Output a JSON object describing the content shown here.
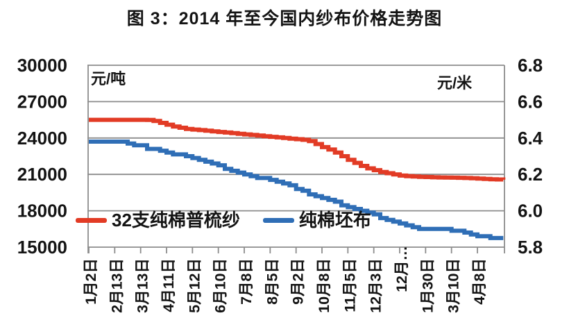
{
  "title": "图 3：2014 年至今国内纱布价格走势图",
  "chart_data": {
    "type": "line",
    "title": "图 3：2014 年至今国内纱布价格走势图",
    "grid": "horizontal",
    "legend_position": "inside-bottom-left",
    "left_axis": {
      "unit_label": "元/吨",
      "tick_labels": [
        "30000",
        "27000",
        "24000",
        "21000",
        "18000",
        "15000"
      ],
      "range": [
        15000,
        30000
      ]
    },
    "right_axis": {
      "unit_label": "元/米",
      "tick_labels": [
        "6.8",
        "6.6",
        "6.4",
        "6.2",
        "6.0",
        "5.8"
      ],
      "range": [
        5.8,
        6.8
      ]
    },
    "categories": [
      "1月2日",
      "2月13日",
      "3月13日",
      "4月11日",
      "5月12日",
      "6月10日",
      "7月8日",
      "8月5日",
      "9月2日",
      "10月8日",
      "11月5日",
      "12月3日",
      "12月…",
      "1月30日",
      "3月10日",
      "4月8日"
    ],
    "x_note": "series x positions are in category-index units: index i = category i tick; weekly points every 0.25 index",
    "series": [
      {
        "name": "32支纯棉普梳纱",
        "axis": "left",
        "color": "#e23b25",
        "x_start": 0,
        "x_step": 0.25,
        "values": [
          25500,
          25500,
          25500,
          25500,
          25500,
          25500,
          25500,
          25500,
          25500,
          25490,
          25400,
          25250,
          25100,
          24950,
          24850,
          24750,
          24700,
          24650,
          24600,
          24550,
          24500,
          24450,
          24400,
          24350,
          24300,
          24250,
          24200,
          24150,
          24100,
          24050,
          24000,
          23950,
          23900,
          23850,
          23750,
          23500,
          23250,
          23050,
          22800,
          22500,
          22200,
          21950,
          21700,
          21500,
          21350,
          21200,
          21100,
          21000,
          20900,
          20850,
          20820,
          20800,
          20780,
          20760,
          20750,
          20740,
          20730,
          20720,
          20700,
          20680,
          20650,
          20630,
          20600,
          20580,
          20560
        ]
      },
      {
        "name": "纯棉坯布",
        "axis": "right",
        "color": "#2f6eb6",
        "x_start": 0,
        "x_step": 0.25,
        "values": [
          6.38,
          6.38,
          6.38,
          6.38,
          6.38,
          6.38,
          6.37,
          6.36,
          6.36,
          6.34,
          6.34,
          6.33,
          6.32,
          6.31,
          6.31,
          6.3,
          6.29,
          6.28,
          6.27,
          6.26,
          6.25,
          6.23,
          6.22,
          6.21,
          6.2,
          6.19,
          6.18,
          6.18,
          6.17,
          6.16,
          6.15,
          6.14,
          6.12,
          6.11,
          6.09,
          6.08,
          6.07,
          6.06,
          6.05,
          6.03,
          6.02,
          6.01,
          6.0,
          5.99,
          5.98,
          5.96,
          5.95,
          5.94,
          5.93,
          5.92,
          5.91,
          5.9,
          5.9,
          5.9,
          5.9,
          5.9,
          5.89,
          5.89,
          5.88,
          5.87,
          5.86,
          5.86,
          5.85,
          5.85,
          5.85
        ]
      }
    ]
  },
  "colors": {
    "red_series": "#e23b25",
    "blue_series": "#2f6eb6",
    "grid": "#8c8c8c",
    "text": "#141414"
  }
}
